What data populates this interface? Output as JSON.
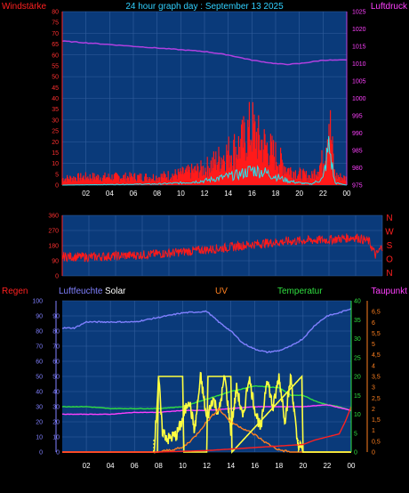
{
  "title": "24 hour graph day : September 13 2025",
  "colors": {
    "background": "#000000",
    "plot_bg": "#0a3a7a",
    "grid": "#335f9e",
    "wind": "#ff1a1a",
    "gust": "#22e6f0",
    "pressure": "#b040e0",
    "humidity": "#8080ff",
    "solar": "#ffff40",
    "uv": "#ff8020",
    "temperature": "#30e040",
    "dewpoint": "#ff40ff",
    "rain": "#ff2020"
  },
  "chart_data": [
    {
      "type": "line",
      "labels": {
        "left": "Windstärke",
        "right": "Luftdruck"
      },
      "x_ticks": [
        "02",
        "04",
        "06",
        "08",
        "10",
        "12",
        "14",
        "16",
        "18",
        "20",
        "22",
        "00"
      ],
      "left_axis": {
        "ylim": [
          0,
          80
        ],
        "ticks": [
          "0",
          "5",
          "10",
          "15",
          "20",
          "25",
          "30",
          "35",
          "40",
          "45",
          "50",
          "55",
          "60",
          "65",
          "70",
          "75",
          "80"
        ]
      },
      "right_axis": {
        "ylim": [
          975,
          1025
        ],
        "ticks": [
          "975",
          "980",
          "985",
          "990",
          "995",
          "1000",
          "1005",
          "1010",
          "1015",
          "1020",
          "1025"
        ]
      },
      "series": [
        {
          "key": "pressure",
          "axis": "right",
          "x": [
            0,
            2,
            4,
            6,
            8,
            10,
            12,
            14,
            16,
            17,
            18,
            19,
            20,
            21,
            22,
            23,
            24
          ],
          "y": [
            1016.5,
            1016,
            1015.5,
            1015,
            1014.5,
            1014,
            1013.5,
            1012.5,
            1011,
            1010.5,
            1010,
            1009.8,
            1010,
            1010.5,
            1011,
            1011,
            1011
          ]
        },
        {
          "key": "wind",
          "axis": "left",
          "style": "bars",
          "x": [
            0,
            2,
            4,
            6,
            8,
            10,
            12,
            13,
            14,
            15,
            15.5,
            16,
            16.5,
            17,
            18,
            19,
            20,
            21,
            22,
            22.5,
            23,
            24
          ],
          "y": [
            4,
            5,
            5,
            5,
            5,
            7,
            10,
            15,
            20,
            24,
            30,
            35,
            28,
            25,
            18,
            10,
            7,
            5,
            15,
            42,
            6,
            4
          ]
        },
        {
          "key": "gust",
          "axis": "left",
          "x": [
            0,
            8,
            10,
            12,
            13,
            14,
            15,
            16,
            17,
            18,
            19,
            20,
            21,
            22,
            22.5,
            23,
            24
          ],
          "y": [
            0,
            0.5,
            1,
            2,
            3,
            4,
            5,
            7,
            6,
            4,
            2,
            1,
            0.5,
            3,
            18,
            1,
            0
          ]
        }
      ]
    },
    {
      "type": "line",
      "right_labels": [
        "N",
        "W",
        "S",
        "O",
        "N"
      ],
      "left_axis": {
        "ylim": [
          0,
          360
        ],
        "ticks": [
          "0",
          "90",
          "180",
          "270",
          "360"
        ]
      },
      "series": [
        {
          "key": "wind_direction",
          "x": [
            0,
            2,
            4,
            6,
            8,
            10,
            12,
            14,
            16,
            18,
            20,
            22,
            23,
            23.5,
            24
          ],
          "y": [
            115,
            112,
            118,
            125,
            135,
            150,
            165,
            185,
            200,
            210,
            215,
            230,
            205,
            120,
            175
          ]
        }
      ]
    },
    {
      "type": "line",
      "labels": {
        "rain": "Regen",
        "humidity": "Luftfeuchte",
        "solar": "Solar",
        "uv": "UV",
        "temperature": "Temperatur",
        "dewpoint": "Taupunkt"
      },
      "x_ticks": [
        "02",
        "04",
        "06",
        "08",
        "10",
        "12",
        "14",
        "16",
        "18",
        "20",
        "22",
        "00"
      ],
      "rain_axis": {
        "ylim": [
          0,
          100
        ],
        "ticks": [
          "0",
          "10",
          "20",
          "30",
          "40",
          "50",
          "60",
          "70",
          "80",
          "90",
          "100"
        ]
      },
      "humidity_axis": {
        "ylim": [
          0,
          100
        ],
        "ticks": [
          "0",
          "10",
          "20",
          "30",
          "40",
          "50",
          "60",
          "70",
          "80",
          "90"
        ]
      },
      "temp_axis": {
        "ylim": [
          0,
          40
        ],
        "ticks": [
          "0",
          "5",
          "10",
          "15",
          "20",
          "25",
          "30",
          "35",
          "40"
        ]
      },
      "uv_axis": {
        "ylim": [
          0,
          7
        ],
        "ticks": [
          "0",
          "0,5",
          "1",
          "1,5",
          "2",
          "2,5",
          "3",
          "3,5",
          "4",
          "4,5",
          "5",
          "5,5",
          "6",
          "6,5"
        ]
      },
      "series": [
        {
          "key": "humidity",
          "axis": "humidity",
          "x": [
            0,
            1,
            2,
            4,
            5,
            6,
            8,
            10,
            12,
            13,
            14,
            15,
            16,
            17,
            18,
            19,
            20,
            21,
            22,
            23,
            24
          ],
          "y": [
            82,
            82,
            86,
            86,
            86,
            86,
            89,
            92,
            93,
            86,
            80,
            72,
            68,
            66,
            67,
            70,
            75,
            84,
            90,
            92,
            95
          ]
        },
        {
          "key": "temperature",
          "axis": "temp",
          "x": [
            0,
            2,
            4,
            6,
            8,
            10,
            12,
            14,
            16,
            18,
            19,
            20,
            21,
            22,
            23,
            24
          ],
          "y": [
            12,
            12,
            11.5,
            11.5,
            11.5,
            12,
            14,
            16,
            17.5,
            17,
            15,
            15,
            13.5,
            12.5,
            12,
            11
          ]
        },
        {
          "key": "dewpoint",
          "axis": "temp",
          "x": [
            0,
            2,
            4,
            6,
            8,
            10,
            12,
            14,
            16,
            18,
            20,
            22,
            24
          ],
          "y": [
            10,
            10,
            10,
            10.5,
            10.5,
            11,
            11,
            11.5,
            12,
            12,
            12,
            12.5,
            11
          ]
        },
        {
          "key": "solar",
          "axis": "uv",
          "x": [
            0,
            7.6,
            7.8,
            8,
            8.3,
            8.8,
            9.5,
            10,
            10.5,
            11,
            11.5,
            12,
            12.5,
            13,
            13.5,
            14,
            14.5,
            15,
            15.5,
            16,
            16.5,
            17,
            17.5,
            18,
            18.5,
            19,
            19.5,
            20,
            24
          ],
          "y": [
            0,
            0,
            1.5,
            3.5,
            1,
            0.6,
            0.8,
            1.5,
            2.5,
            1,
            3.5,
            1.5,
            2.5,
            1.8,
            3.5,
            1,
            3,
            1.5,
            3.5,
            2,
            1,
            3.5,
            2,
            3.5,
            1.5,
            3.5,
            0.5,
            0,
            0
          ]
        },
        {
          "key": "uv",
          "axis": "uv",
          "x": [
            0,
            8,
            10,
            11,
            12,
            13,
            14,
            15,
            16,
            17,
            18,
            19,
            20,
            24
          ],
          "y": [
            0,
            0,
            0.2,
            0.7,
            1.4,
            2,
            1.4,
            1.1,
            0.8,
            0.4,
            0.1,
            0,
            0,
            0
          ]
        },
        {
          "key": "uv_flag",
          "axis": "uv",
          "x": [
            0,
            7.9,
            8,
            10,
            10.1,
            12,
            12.1,
            14,
            14.1,
            19.9,
            20,
            24
          ],
          "y": [
            0,
            0,
            3.5,
            3.5,
            0,
            0,
            3.5,
            3.5,
            0,
            3.5,
            0,
            0
          ]
        },
        {
          "key": "rain",
          "axis": "rain",
          "x": [
            0,
            8,
            10,
            12,
            14,
            16,
            18,
            20,
            21,
            22,
            23,
            23.5,
            24
          ],
          "y": [
            0,
            0,
            0.5,
            1,
            2,
            3,
            4,
            5,
            8,
            10,
            12,
            20,
            30
          ]
        }
      ]
    }
  ]
}
